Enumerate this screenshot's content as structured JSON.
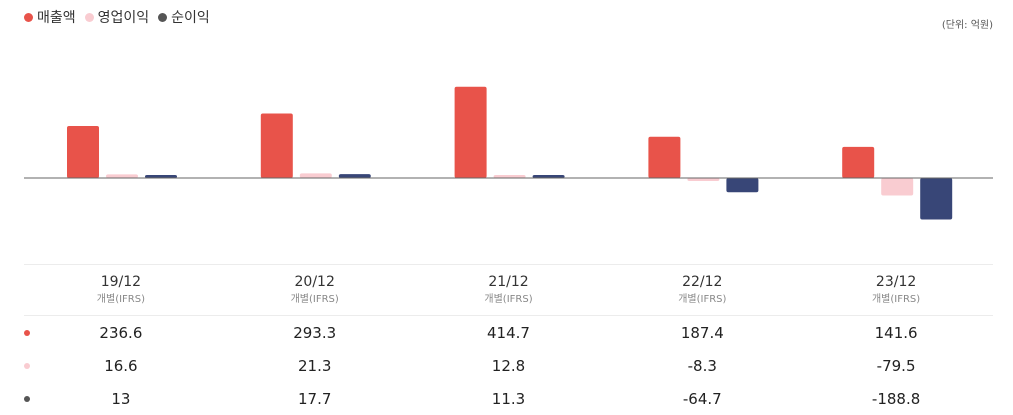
{
  "legend": [
    {
      "label": "매출액",
      "color": "#e8534a"
    },
    {
      "label": "영업이익",
      "color": "#f9ccd1"
    },
    {
      "label": "순이익",
      "color": "#555555"
    }
  ],
  "unit_label": "(단위: 억원)",
  "chart_data": {
    "type": "bar",
    "categories": [
      "19/12",
      "20/12",
      "21/12",
      "22/12",
      "23/12"
    ],
    "category_sub": "개별(IFRS)",
    "series": [
      {
        "name": "매출액",
        "color": "#e8534a",
        "values": [
          236.6,
          293.3,
          414.7,
          187.4,
          141.6
        ]
      },
      {
        "name": "영업이익",
        "color": "#f9ccd1",
        "values": [
          16.6,
          21.3,
          12.8,
          -8.3,
          -79.5
        ]
      },
      {
        "name": "순이익",
        "color": "#384677",
        "values": [
          13,
          17.7,
          11.3,
          -64.7,
          -188.8
        ]
      }
    ],
    "ylim": [
      -230,
      420
    ],
    "legend_position": "top-left",
    "grid": false
  },
  "table": {
    "rows": [
      {
        "dot_color": "#e8534a",
        "values": [
          "236.6",
          "293.3",
          "414.7",
          "187.4",
          "141.6"
        ]
      },
      {
        "dot_color": "#f9ccd1",
        "values": [
          "16.6",
          "21.3",
          "12.8",
          "-8.3",
          "-79.5"
        ]
      },
      {
        "dot_color": "#555555",
        "values": [
          "13",
          "17.7",
          "11.3",
          "-64.7",
          "-188.8"
        ]
      }
    ]
  }
}
